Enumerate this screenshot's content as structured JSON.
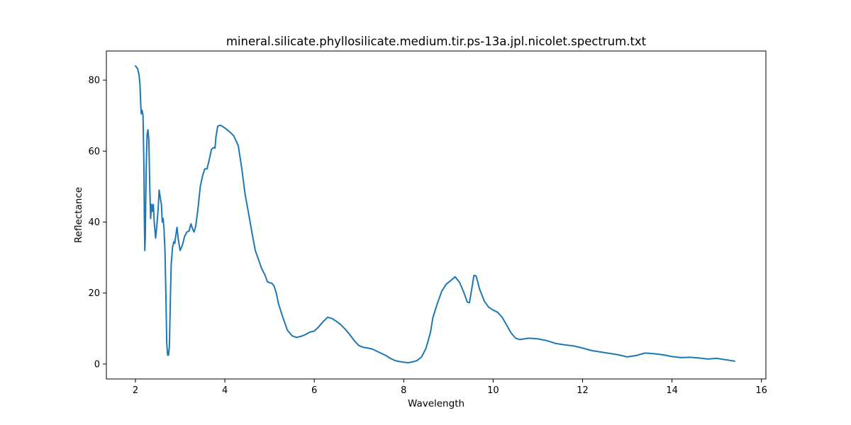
{
  "chart_data": {
    "type": "line",
    "title": "mineral.silicate.phyllosilicate.medium.tir.ps-13a.jpl.nicolet.spectrum.txt",
    "xlabel": "Wavelength",
    "ylabel": "Reflectance",
    "xlim": [
      1.35,
      16.1
    ],
    "ylim": [
      -4.2,
      88.2
    ],
    "xticks": [
      2,
      4,
      6,
      8,
      10,
      12,
      14,
      16
    ],
    "yticks": [
      0,
      20,
      40,
      60,
      80
    ],
    "grid": false,
    "legend": "none",
    "series": [
      {
        "color": "#1f77b4",
        "points": [
          [
            2.0,
            84.0
          ],
          [
            2.05,
            83.2
          ],
          [
            2.08,
            81.5
          ],
          [
            2.1,
            79.0
          ],
          [
            2.12,
            73.0
          ],
          [
            2.13,
            70.5
          ],
          [
            2.15,
            71.5
          ],
          [
            2.17,
            70.0
          ],
          [
            2.19,
            55.0
          ],
          [
            2.2,
            40.0
          ],
          [
            2.21,
            32.0
          ],
          [
            2.22,
            36.0
          ],
          [
            2.24,
            55.0
          ],
          [
            2.26,
            64.5
          ],
          [
            2.28,
            66.0
          ],
          [
            2.3,
            63.0
          ],
          [
            2.32,
            50.0
          ],
          [
            2.34,
            41.0
          ],
          [
            2.36,
            45.0
          ],
          [
            2.38,
            43.0
          ],
          [
            2.4,
            45.0
          ],
          [
            2.42,
            40.0
          ],
          [
            2.45,
            35.5
          ],
          [
            2.48,
            39.0
          ],
          [
            2.51,
            44.0
          ],
          [
            2.53,
            49.0
          ],
          [
            2.56,
            46.5
          ],
          [
            2.58,
            45.0
          ],
          [
            2.6,
            40.0
          ],
          [
            2.62,
            41.0
          ],
          [
            2.64,
            38.0
          ],
          [
            2.66,
            32.0
          ],
          [
            2.68,
            20.0
          ],
          [
            2.7,
            6.0
          ],
          [
            2.72,
            2.5
          ],
          [
            2.74,
            2.5
          ],
          [
            2.76,
            5.0
          ],
          [
            2.78,
            18.0
          ],
          [
            2.8,
            28.0
          ],
          [
            2.83,
            33.0
          ],
          [
            2.86,
            34.5
          ],
          [
            2.88,
            34.0
          ],
          [
            2.9,
            36.0
          ],
          [
            2.93,
            38.5
          ],
          [
            2.96,
            35.0
          ],
          [
            3.0,
            32.0
          ],
          [
            3.05,
            33.5
          ],
          [
            3.1,
            36.0
          ],
          [
            3.15,
            37.2
          ],
          [
            3.2,
            37.5
          ],
          [
            3.24,
            39.5
          ],
          [
            3.28,
            38.0
          ],
          [
            3.31,
            37.2
          ],
          [
            3.35,
            39.0
          ],
          [
            3.4,
            44.0
          ],
          [
            3.45,
            50.0
          ],
          [
            3.5,
            53.0
          ],
          [
            3.55,
            55.0
          ],
          [
            3.6,
            55.0
          ],
          [
            3.65,
            57.5
          ],
          [
            3.7,
            60.5
          ],
          [
            3.75,
            61.0
          ],
          [
            3.78,
            60.8
          ],
          [
            3.8,
            64.0
          ],
          [
            3.84,
            67.0
          ],
          [
            3.9,
            67.3
          ],
          [
            4.0,
            66.5
          ],
          [
            4.1,
            65.5
          ],
          [
            4.2,
            64.3
          ],
          [
            4.3,
            61.5
          ],
          [
            4.38,
            55.0
          ],
          [
            4.45,
            48.0
          ],
          [
            4.55,
            41.0
          ],
          [
            4.62,
            36.0
          ],
          [
            4.68,
            32.0
          ],
          [
            4.75,
            29.5
          ],
          [
            4.82,
            27.0
          ],
          [
            4.9,
            25.0
          ],
          [
            4.95,
            23.2
          ],
          [
            5.0,
            22.9
          ],
          [
            5.05,
            22.8
          ],
          [
            5.1,
            22.0
          ],
          [
            5.15,
            20.0
          ],
          [
            5.2,
            17.0
          ],
          [
            5.3,
            13.0
          ],
          [
            5.4,
            9.5
          ],
          [
            5.5,
            8.0
          ],
          [
            5.6,
            7.5
          ],
          [
            5.7,
            7.8
          ],
          [
            5.8,
            8.3
          ],
          [
            5.9,
            9.0
          ],
          [
            6.0,
            9.3
          ],
          [
            6.1,
            10.5
          ],
          [
            6.2,
            12.0
          ],
          [
            6.3,
            13.2
          ],
          [
            6.4,
            12.8
          ],
          [
            6.5,
            12.0
          ],
          [
            6.6,
            11.0
          ],
          [
            6.7,
            9.7
          ],
          [
            6.8,
            8.2
          ],
          [
            6.9,
            6.5
          ],
          [
            7.0,
            5.2
          ],
          [
            7.1,
            4.7
          ],
          [
            7.2,
            4.5
          ],
          [
            7.3,
            4.2
          ],
          [
            7.4,
            3.6
          ],
          [
            7.5,
            3.0
          ],
          [
            7.6,
            2.4
          ],
          [
            7.7,
            1.6
          ],
          [
            7.8,
            1.0
          ],
          [
            7.9,
            0.7
          ],
          [
            8.0,
            0.5
          ],
          [
            8.1,
            0.4
          ],
          [
            8.2,
            0.6
          ],
          [
            8.3,
            1.0
          ],
          [
            8.4,
            2.0
          ],
          [
            8.5,
            4.5
          ],
          [
            8.6,
            9.0
          ],
          [
            8.65,
            13.0
          ],
          [
            8.75,
            17.0
          ],
          [
            8.85,
            20.5
          ],
          [
            8.95,
            22.5
          ],
          [
            9.05,
            23.5
          ],
          [
            9.15,
            24.6
          ],
          [
            9.25,
            23.0
          ],
          [
            9.35,
            20.0
          ],
          [
            9.42,
            17.5
          ],
          [
            9.47,
            17.3
          ],
          [
            9.52,
            21.0
          ],
          [
            9.57,
            25.0
          ],
          [
            9.62,
            24.8
          ],
          [
            9.7,
            21.0
          ],
          [
            9.8,
            17.8
          ],
          [
            9.9,
            16.0
          ],
          [
            10.0,
            15.2
          ],
          [
            10.1,
            14.6
          ],
          [
            10.2,
            13.2
          ],
          [
            10.3,
            11.0
          ],
          [
            10.4,
            8.8
          ],
          [
            10.5,
            7.3
          ],
          [
            10.6,
            6.9
          ],
          [
            10.8,
            7.3
          ],
          [
            11.0,
            7.1
          ],
          [
            11.2,
            6.6
          ],
          [
            11.4,
            5.8
          ],
          [
            11.6,
            5.4
          ],
          [
            11.8,
            5.1
          ],
          [
            12.0,
            4.5
          ],
          [
            12.2,
            3.8
          ],
          [
            12.4,
            3.4
          ],
          [
            12.6,
            3.0
          ],
          [
            12.8,
            2.6
          ],
          [
            13.0,
            2.0
          ],
          [
            13.2,
            2.4
          ],
          [
            13.4,
            3.1
          ],
          [
            13.6,
            2.9
          ],
          [
            13.8,
            2.6
          ],
          [
            14.0,
            2.1
          ],
          [
            14.2,
            1.8
          ],
          [
            14.4,
            1.9
          ],
          [
            14.6,
            1.7
          ],
          [
            14.8,
            1.4
          ],
          [
            15.0,
            1.6
          ],
          [
            15.2,
            1.2
          ],
          [
            15.4,
            0.8
          ]
        ]
      }
    ]
  }
}
